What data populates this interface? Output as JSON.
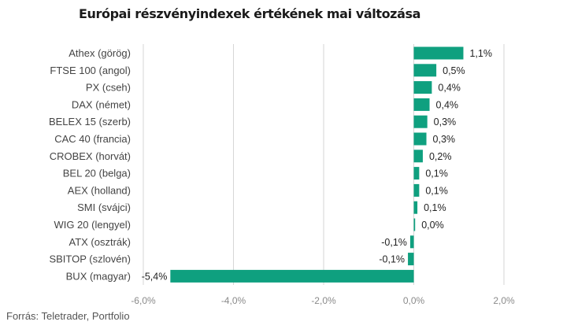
{
  "chart_data": {
    "type": "bar",
    "orientation": "horizontal",
    "title": "Európai részvényindexek értékének mai változása",
    "categories": [
      "Athex (görög)",
      "FTSE 100 (angol)",
      "PX (cseh)",
      "DAX (német)",
      "BELEX 15 (szerb)",
      "CAC 40 (francia)",
      "CROBEX (horvát)",
      "BEL 20 (belga)",
      "AEX (holland)",
      "SMI (svájci)",
      "WIG 20 (lengyel)",
      "ATX (osztrák)",
      "SBITOP (szlovén)",
      "BUX (magyar)"
    ],
    "values": [
      1.1,
      0.5,
      0.4,
      0.35,
      0.3,
      0.28,
      0.2,
      0.12,
      0.12,
      0.08,
      0.03,
      -0.08,
      -0.13,
      -5.4
    ],
    "value_labels": [
      "1,1%",
      "0,5%",
      "0,4%",
      "0,4%",
      "0,3%",
      "0,3%",
      "0,2%",
      "0,1%",
      "0,1%",
      "0,1%",
      "0,0%",
      "-0,1%",
      "-0,1%",
      "-5,4%"
    ],
    "xlim": [
      -6,
      2
    ],
    "xticks": [
      -6,
      -4,
      -2,
      0,
      2
    ],
    "xtick_labels": [
      "-6,0%",
      "-4,0%",
      "-2,0%",
      "0,0%",
      "2,0%"
    ],
    "grid": true,
    "bar_color": "#0fa07f"
  },
  "source": "Forrás: Teletrader, Portfolio",
  "colors": {
    "bar": "#0fa07f",
    "grid": "#d6d6d6",
    "axis_text": "#8a8a8a",
    "label_text": "#444444"
  }
}
